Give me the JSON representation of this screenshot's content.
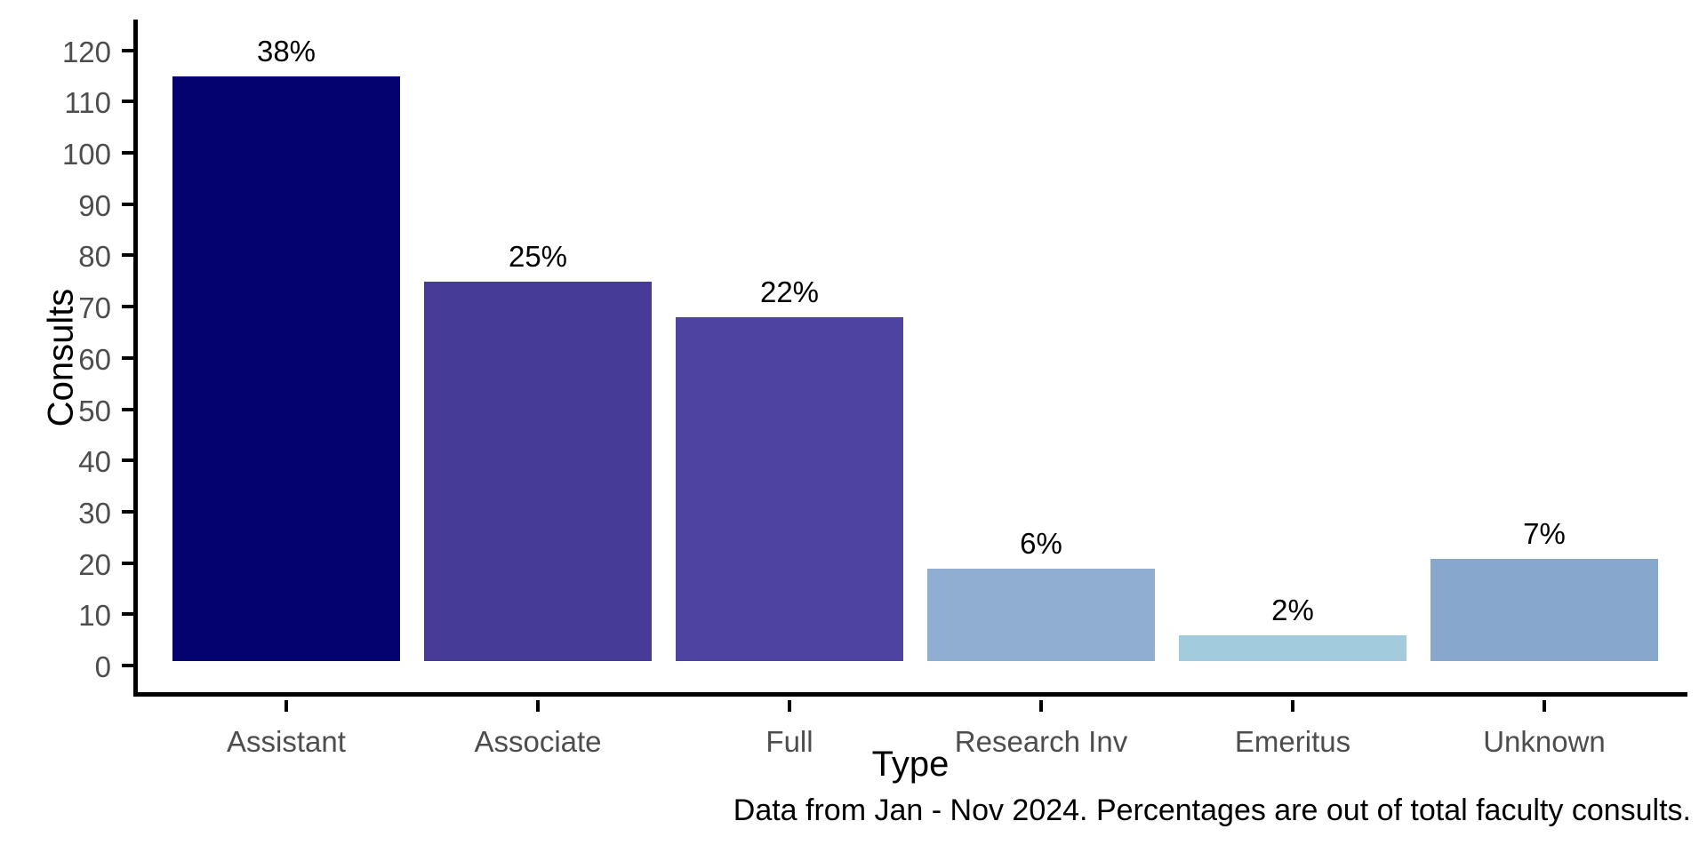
{
  "chart_data": {
    "type": "bar",
    "title": "",
    "xlabel": "Type",
    "ylabel": "Consults",
    "caption": "Data from Jan - Nov 2024. Percentages are out of total faculty consults.",
    "categories": [
      "Assistant",
      "Associate",
      "Full",
      "Research Inv",
      "Emeritus",
      "Unknown"
    ],
    "values": [
      114,
      74,
      67,
      18,
      5,
      20
    ],
    "bar_labels": [
      "38%",
      "25%",
      "22%",
      "6%",
      "2%",
      "7%"
    ],
    "bar_colors": [
      "#04026e",
      "#463c97",
      "#4e43a0",
      "#90aed1",
      "#a3cbde",
      "#88a7cc"
    ],
    "ylim": [
      0,
      120
    ],
    "yticks": [
      0,
      10,
      20,
      30,
      40,
      50,
      60,
      70,
      80,
      90,
      100,
      110,
      120
    ],
    "grid": "off",
    "legend": "none",
    "axis_color": "#000000",
    "tick_label_color": "#4d4d4d"
  }
}
